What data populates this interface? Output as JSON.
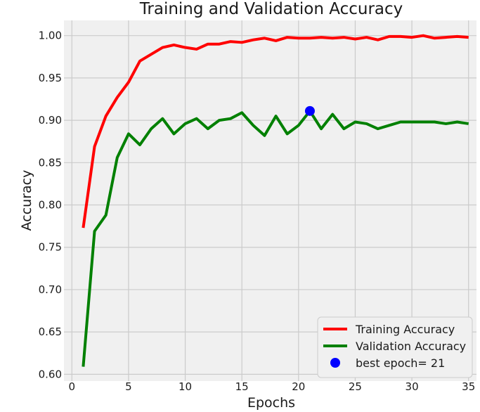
{
  "chart_data": {
    "type": "line",
    "title": "Training and Validation Accuracy",
    "xlabel": "Epochs",
    "ylabel": "Accuracy",
    "xlim": [
      -0.7,
      35.7
    ],
    "ylim": [
      0.592,
      1.018
    ],
    "xticks": [
      0,
      5,
      10,
      15,
      20,
      25,
      30,
      35
    ],
    "yticks": [
      0.6,
      0.65,
      0.7,
      0.75,
      0.8,
      0.85,
      0.9,
      0.95,
      1.0
    ],
    "ytick_labels": [
      "0.60",
      "0.65",
      "0.70",
      "0.75",
      "0.80",
      "0.85",
      "0.90",
      "0.95",
      "1.00"
    ],
    "grid": true,
    "legend_position": "bottom-right",
    "x": [
      1,
      2,
      3,
      4,
      5,
      6,
      7,
      8,
      9,
      10,
      11,
      12,
      13,
      14,
      15,
      16,
      17,
      18,
      19,
      20,
      21,
      22,
      23,
      24,
      25,
      26,
      27,
      28,
      29,
      30,
      31,
      32,
      33,
      34,
      35
    ],
    "series": [
      {
        "name": "Training Accuracy",
        "color": "#ff0000",
        "values": [
          0.773,
          0.869,
          0.905,
          0.927,
          0.945,
          0.97,
          0.978,
          0.986,
          0.989,
          0.986,
          0.984,
          0.99,
          0.99,
          0.993,
          0.992,
          0.995,
          0.997,
          0.994,
          0.998,
          0.997,
          0.997,
          0.998,
          0.997,
          0.998,
          0.996,
          0.998,
          0.995,
          0.999,
          0.999,
          0.998,
          1.0,
          0.997,
          0.998,
          0.999,
          0.998
        ]
      },
      {
        "name": "Validation Accuracy",
        "color": "#008000",
        "values": [
          0.609,
          0.769,
          0.788,
          0.856,
          0.884,
          0.871,
          0.89,
          0.902,
          0.884,
          0.896,
          0.902,
          0.89,
          0.9,
          0.902,
          0.909,
          0.894,
          0.882,
          0.905,
          0.884,
          0.894,
          0.911,
          0.89,
          0.907,
          0.89,
          0.898,
          0.896,
          0.89,
          0.894,
          0.898,
          0.898,
          0.898,
          0.898,
          0.896,
          0.898,
          0.896
        ]
      }
    ],
    "best_point": {
      "name": "best epoch= 21",
      "x": 21,
      "y": 0.911,
      "color": "#0000ff"
    }
  }
}
